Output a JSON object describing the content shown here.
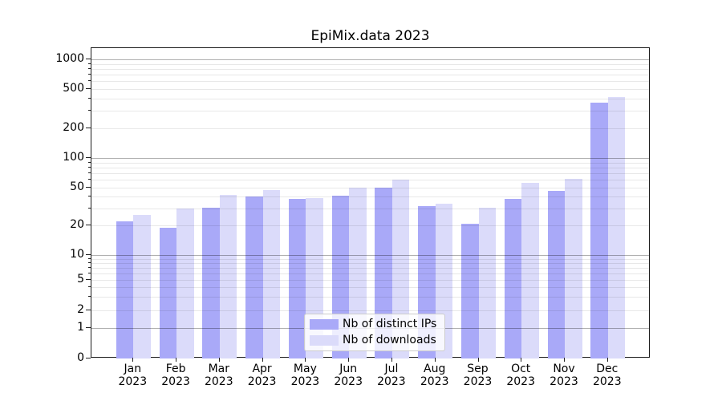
{
  "chart_data": {
    "type": "bar",
    "title": "EpiMix.data 2023",
    "categories": [
      "Jan 2023",
      "Feb 2023",
      "Mar 2023",
      "Apr 2023",
      "May 2023",
      "Jun 2023",
      "Jul 2023",
      "Aug 2023",
      "Sep 2023",
      "Oct 2023",
      "Nov 2023",
      "Dec 2023"
    ],
    "series": [
      {
        "name": "Nb of distinct IPs",
        "color": "#a9a9f8",
        "values": [
          22,
          19,
          31,
          40,
          38,
          41,
          50,
          32,
          21,
          38,
          46,
          365
        ]
      },
      {
        "name": "Nb of downloads",
        "color": "#dbdbfa",
        "values": [
          26,
          30,
          42,
          47,
          39,
          50,
          60,
          34,
          31,
          56,
          61,
          415
        ]
      }
    ],
    "xlabel": "",
    "ylabel": "",
    "yscale": "asinh",
    "y_tick_values": [
      0,
      1,
      2,
      5,
      10,
      20,
      50,
      100,
      200,
      500,
      1000
    ],
    "y_tick_labels": [
      "0",
      "1",
      "2",
      "5",
      "10",
      "20",
      "50",
      "100",
      "200",
      "500",
      "1000"
    ],
    "ylim": [
      0,
      1300
    ],
    "grid": {
      "horizontal": true,
      "major_on_powers_of_ten": true,
      "minor": true
    },
    "legend": {
      "position": "lower center",
      "entries": [
        "Nb of distinct IPs",
        "Nb of downloads"
      ]
    }
  },
  "colors": {
    "bar_distinct_ips": "#a9a9f8",
    "bar_downloads": "#dbdbfa",
    "grid_major": "#b0b0b0",
    "grid_minor": "#e8e8e8",
    "axis_frame": "#1a1a1a",
    "legend_border": "#cccccc",
    "text": "#000000"
  }
}
